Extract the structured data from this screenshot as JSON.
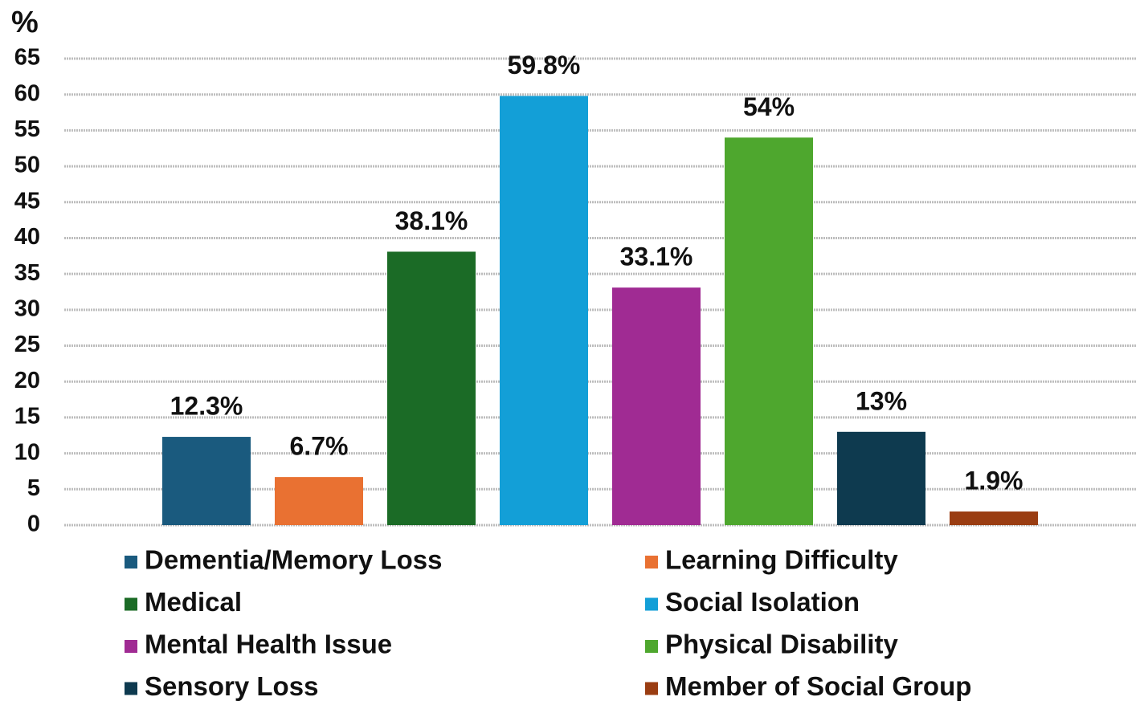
{
  "chart_data": {
    "type": "bar",
    "y_label": "%",
    "ylim": [
      0,
      65
    ],
    "yticks": [
      0,
      5,
      10,
      15,
      20,
      25,
      30,
      35,
      40,
      45,
      50,
      55,
      60,
      65
    ],
    "grid": true,
    "legend": "bottom",
    "series": [
      {
        "name": "Dementia/Memory Loss",
        "color": "#1a5a7e",
        "values": [
          12.3
        ],
        "value_labels": [
          "12.3%"
        ]
      },
      {
        "name": "Learning Difficulty",
        "color": "#e97132",
        "values": [
          6.7
        ],
        "value_labels": [
          "6.7%"
        ]
      },
      {
        "name": "Medical",
        "color": "#1b6b26",
        "values": [
          38.1
        ],
        "value_labels": [
          "38.1%"
        ]
      },
      {
        "name": "Social Isolation",
        "color": "#139fd7",
        "values": [
          59.8
        ],
        "value_labels": [
          "59.8%"
        ]
      },
      {
        "name": "Mental Health Issue",
        "color": "#a02b93",
        "values": [
          33.1
        ],
        "value_labels": [
          "33.1%"
        ]
      },
      {
        "name": "Physical Disability",
        "color": "#4ea72e",
        "values": [
          54
        ],
        "value_labels": [
          "54%"
        ]
      },
      {
        "name": "Sensory Loss",
        "color": "#0e3a4f",
        "values": [
          13
        ],
        "value_labels": [
          "13%"
        ]
      },
      {
        "name": "Member of Social Group",
        "color": "#9a3d12",
        "values": [
          1.9
        ],
        "value_labels": [
          "1.9%"
        ]
      }
    ]
  }
}
